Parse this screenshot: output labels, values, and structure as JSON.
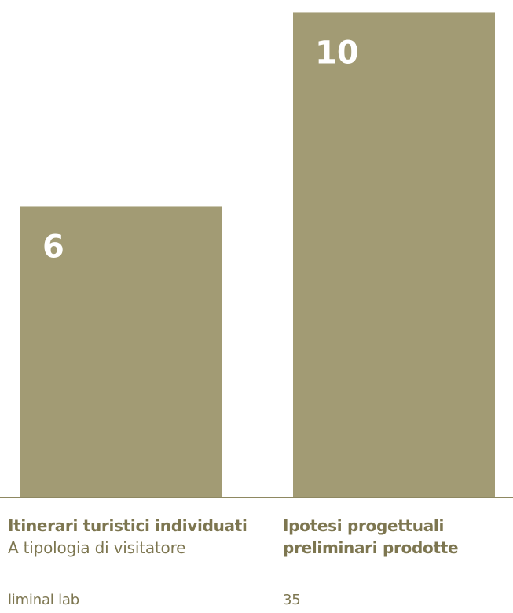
{
  "chart_data": {
    "type": "bar",
    "categories": [
      "Itinerari turistici individuati",
      "Ipotesi progettuali preliminari prodotte"
    ],
    "category_subtitles": [
      "A tipologia di visitatore",
      ""
    ],
    "values": [
      6,
      10
    ],
    "value_labels": [
      "6",
      "10"
    ],
    "ylim": [
      0,
      10.25
    ],
    "grid": false,
    "legend": "none",
    "bar_color": "#a29b74",
    "text_color": "#7d7650"
  },
  "labels": {
    "left_title": "Itinerari turistici individuati",
    "left_subtitle": "A tipologia di visitatore",
    "right_title_line1": "Ipotesi progettuali",
    "right_title_line2": "preliminari prodotte"
  },
  "footer": {
    "left": "liminal lab",
    "right": "35"
  }
}
